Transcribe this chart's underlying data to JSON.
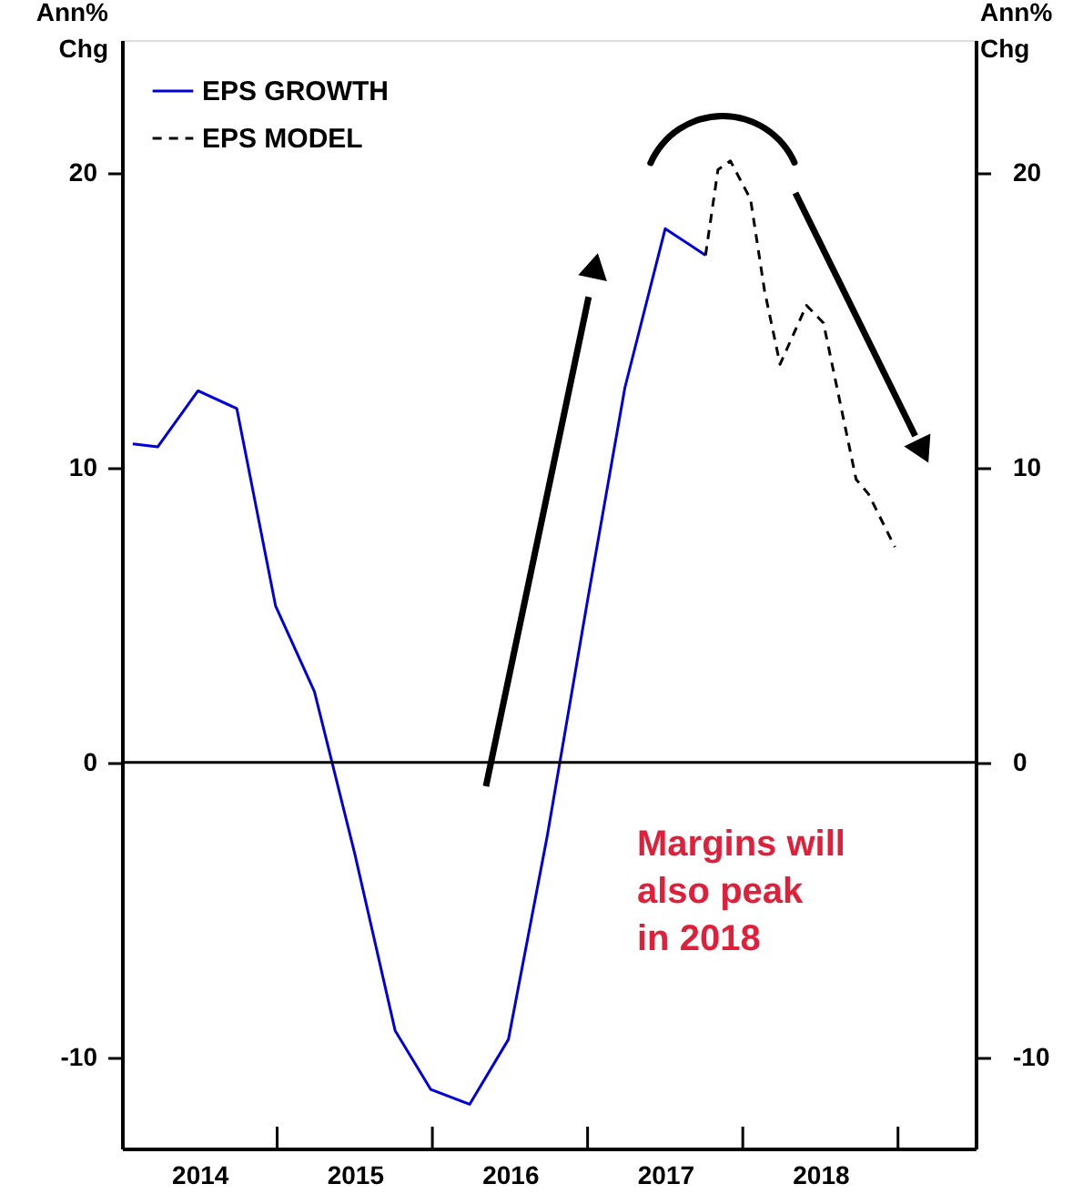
{
  "chart_data": {
    "type": "line",
    "xlim": [
      2014,
      2019.5
    ],
    "xticks": [
      {
        "value": 2014.5,
        "label": "2014"
      },
      {
        "value": 2015,
        "label": null
      },
      {
        "value": 2015.5,
        "label": "2015"
      },
      {
        "value": 2016,
        "label": null
      },
      {
        "value": 2016.5,
        "label": "2016"
      },
      {
        "value": 2017,
        "label": null
      },
      {
        "value": 2017.5,
        "label": "2017"
      },
      {
        "value": 2018,
        "label": null
      },
      {
        "value": 2018.5,
        "label": "2018"
      },
      {
        "value": 2019,
        "label": null
      }
    ],
    "ylim": [
      -13.1,
      24.5
    ],
    "yticks": [
      -10,
      0,
      10,
      20
    ],
    "y2lim": [
      -13.1,
      24.5
    ],
    "y2ticks": [
      -10,
      0,
      10,
      20
    ],
    "ylabel": "Ann%\nChg",
    "y2label": "Ann%\nChg",
    "grid": false,
    "legend": "top left",
    "ref_lines": [
      {
        "axis": "y",
        "value": 0,
        "color": "#000000",
        "line_style": "solid"
      }
    ],
    "annotations": [
      "Margins will\nalso peak\nin 2018"
    ],
    "series": [
      {
        "name": "EPS GROWTH",
        "color": "#0000dd",
        "line_style": "solid",
        "x": [
          2014.07,
          2014.23,
          2014.49,
          2014.74,
          2014.99,
          2015.24,
          2015.5,
          2015.76,
          2015.99,
          2016.24,
          2016.49,
          2016.74,
          2017.0,
          2017.24,
          2017.5,
          2017.76
        ],
        "values": [
          10.8,
          10.7,
          12.6,
          12.0,
          5.3,
          2.4,
          -3.1,
          -9.1,
          -11.1,
          -11.6,
          -9.4,
          -2.5,
          5.5,
          12.7,
          18.1,
          17.2
        ]
      },
      {
        "name": "EPS MODEL",
        "color": "#000000",
        "line_style": "dashed",
        "x": [
          2017.76,
          2017.84,
          2017.92,
          2018.05,
          2018.14,
          2018.24,
          2018.41,
          2018.52,
          2018.73,
          2018.81,
          2018.98
        ],
        "values": [
          17.2,
          20.1,
          20.4,
          19.1,
          16.0,
          13.5,
          15.5,
          14.9,
          9.6,
          9.1,
          7.3
        ]
      }
    ]
  }
}
